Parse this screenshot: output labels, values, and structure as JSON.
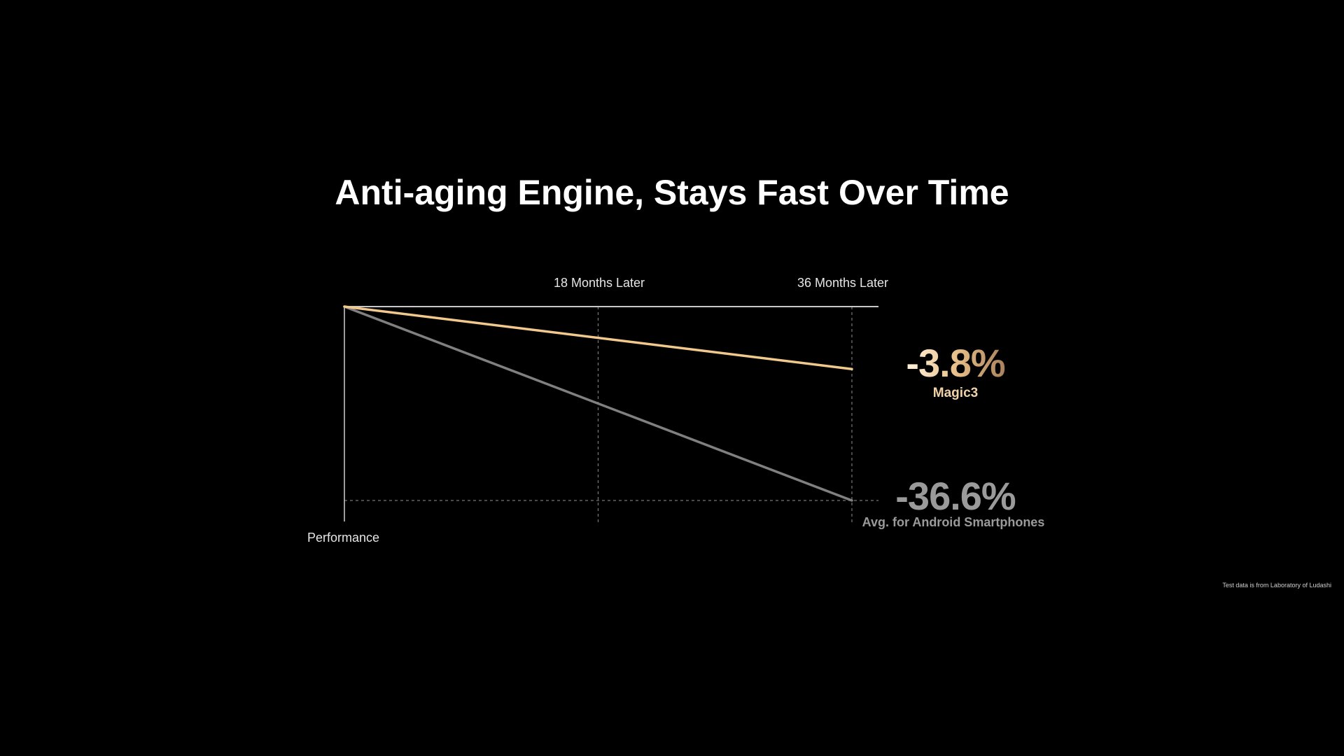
{
  "chart_data": {
    "type": "line",
    "title": "Anti-aging Engine, Stays Fast Over Time",
    "ylabel": "Performance",
    "x_ticks": [
      {
        "x": 18,
        "label": "18 Months Later"
      },
      {
        "x": 36,
        "label": "36 Months Later"
      }
    ],
    "x": [
      0,
      36
    ],
    "series": [
      {
        "name": "Magic3",
        "values": [
          0,
          -3.8
        ],
        "value_label": "-3.8%",
        "color": "#f2c98c"
      },
      {
        "name": "Avg. for Android Smartphones",
        "values": [
          0,
          -36.6
        ],
        "value_label": "-36.6%",
        "color": "#808080"
      }
    ],
    "xlim": [
      0,
      36
    ],
    "grid": "dashed verticals at 18 and 36 months, dashed horizontal at -36.6%",
    "footnote": "Test data is from Laboratory of Ludashi"
  }
}
